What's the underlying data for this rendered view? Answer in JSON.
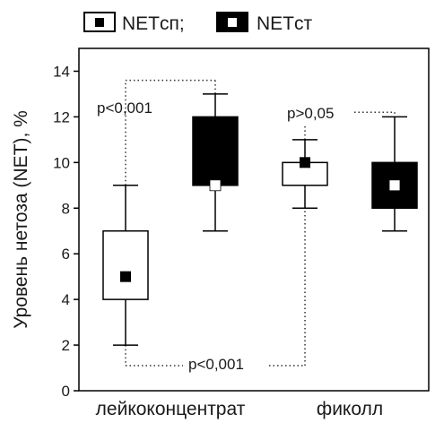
{
  "chart_data": {
    "type": "box",
    "ylabel": "Уровень нетоза (NET), %",
    "ylim": [
      0,
      15
    ],
    "yticks": [
      0,
      2,
      4,
      6,
      8,
      10,
      12,
      14
    ],
    "grid": false,
    "legend_position": "top",
    "categories": [
      "лейкоконцентрат",
      "фиколл"
    ],
    "series": [
      {
        "name": "NETсп;",
        "fill": "#ffffff",
        "marker": "#000000",
        "boxes": [
          {
            "category": "лейкоконцентрат",
            "median": 5,
            "q1": 4,
            "q3": 7,
            "min": 2,
            "max": 9
          },
          {
            "category": "фиколл",
            "median": 10,
            "q1": 9,
            "q3": 10,
            "min": 8,
            "max": 11
          }
        ]
      },
      {
        "name": "NETст",
        "fill": "#000000",
        "marker": "#ffffff",
        "boxes": [
          {
            "category": "лейкоконцентрат",
            "median": 9,
            "q1": 9,
            "q3": 12,
            "min": 7,
            "max": 13
          },
          {
            "category": "фиколл",
            "median": 9,
            "q1": 8,
            "q3": 10,
            "min": 7,
            "max": 12
          }
        ]
      }
    ],
    "annotations": [
      {
        "text": "p<0,001",
        "from": "лейкоконцентрат NETсп",
        "to": "лейкоконцентрат NETст",
        "level": 13.6
      },
      {
        "text": "p>0,05",
        "from": "фиколл NETсп",
        "to": "фиколл NETст",
        "level": 12.2
      },
      {
        "text": "p<0,001",
        "from": "лейкоконцентрат NETсп",
        "to": "фиколл NETсп",
        "level": 1.1
      }
    ]
  }
}
